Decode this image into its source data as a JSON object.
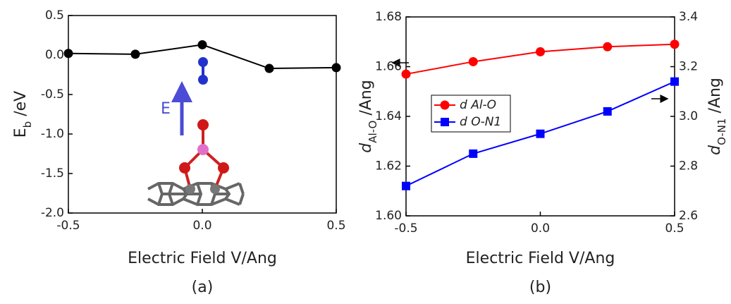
{
  "chart_data": [
    {
      "type": "line",
      "caption": "(a)",
      "xlabel": "Electric Field V/Ang",
      "ylabel": {
        "main": "E",
        "sub": "b",
        "unit": " /eV"
      },
      "annotation": "E",
      "x": [
        -0.5,
        -0.25,
        0,
        0.25,
        0.5
      ],
      "values": [
        0.02,
        0.01,
        0.13,
        -0.17,
        -0.16
      ],
      "color": "#000000",
      "marker": "circle",
      "xlim": [
        -0.5,
        0.5
      ],
      "xticks": [
        {
          "value": -0.5,
          "label": "-0.5"
        },
        {
          "value": 0,
          "label": "0.0"
        },
        0.5
      ],
      "ylim": [
        -2.0,
        0.5
      ],
      "yticks": [
        {
          "value": -2,
          "label": "-2.0"
        },
        -1.5,
        {
          "value": -1,
          "label": "-1.0"
        },
        -0.5,
        {
          "value": 0,
          "label": "0.0"
        },
        0.5
      ]
    },
    {
      "type": "line",
      "caption": "(b)",
      "xlabel": "Electric Field V/Ang",
      "ylabel": {
        "main": "d",
        "sub": "Al-O",
        "unit": " /Ang"
      },
      "y2label": {
        "main": "d",
        "sub": "O-N1",
        "unit": " /Ang"
      },
      "x": [
        -0.5,
        -0.25,
        0,
        0.25,
        0.5
      ],
      "series": [
        {
          "name": "d Al-O",
          "color": "#ff0000",
          "marker": "circle",
          "values": [
            1.657,
            1.662,
            1.666,
            1.668,
            1.669
          ]
        },
        {
          "name": "d O-N1",
          "color": "#0000ff",
          "marker": "square",
          "axis": "y2",
          "values": [
            2.72,
            2.85,
            2.93,
            3.02,
            3.14
          ]
        }
      ],
      "legend": "center-left",
      "xlim": [
        -0.5,
        0.5
      ],
      "xticks": [
        {
          "value": -0.5,
          "label": "-0.5"
        },
        {
          "value": 0,
          "label": "0.0"
        },
        0.5
      ],
      "ylim": [
        1.6,
        1.68
      ],
      "yticks": [
        {
          "value": 1.6,
          "label": "1.60"
        },
        1.62,
        1.64,
        1.66,
        1.68
      ],
      "y2lim": [
        2.6,
        3.4
      ],
      "y2ticks": [
        2.6,
        2.8,
        {
          "value": 3,
          "label": "3.0"
        },
        3.2,
        3.4
      ]
    }
  ]
}
